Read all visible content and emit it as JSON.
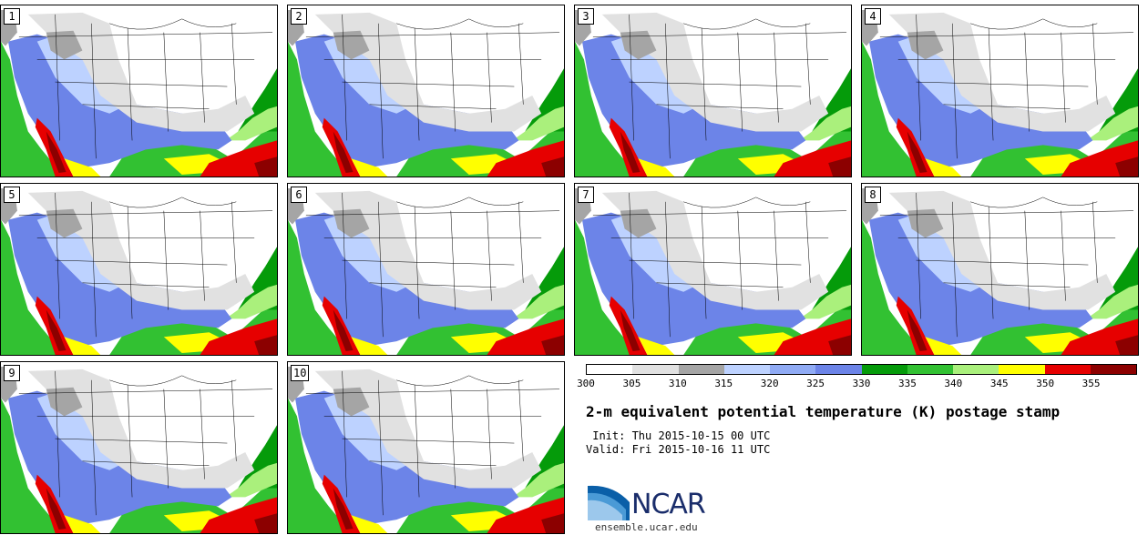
{
  "title": "2-m equivalent potential temperature (K) postage stamp",
  "init_text": " Init: Thu 2015-10-15 00 UTC",
  "valid_text": "Valid: Fri 2015-10-16 11 UTC",
  "logo_text": "NCAR",
  "website": "ensemble.ucar.edu",
  "colorbar": {
    "ticks": [
      "300",
      "305",
      "310",
      "315",
      "320",
      "325",
      "330",
      "335",
      "340",
      "345",
      "350",
      "355"
    ],
    "colors": [
      "#ffffff",
      "#e1e1e1",
      "#a5a5a5",
      "#bdd2ff",
      "#90abf5",
      "#6c84e8",
      "#059b0a",
      "#32c132",
      "#aaf07c",
      "#ffff00",
      "#e60000",
      "#8c0000"
    ]
  },
  "members": [
    "1",
    "2",
    "3",
    "4",
    "5",
    "6",
    "7",
    "8",
    "9",
    "10"
  ],
  "colors": {
    "land_white": "#ffffff",
    "light_gray": "#e1e1e1",
    "mid_gray": "#a5a5a5",
    "light_blue": "#bdd2ff",
    "blue": "#90abf5",
    "dark_blue": "#6c84e8",
    "dark_green": "#059b0a",
    "green": "#32c132",
    "light_green": "#aaf07c",
    "yellow": "#ffff00",
    "red": "#e60000",
    "dark_red": "#8c0000"
  }
}
